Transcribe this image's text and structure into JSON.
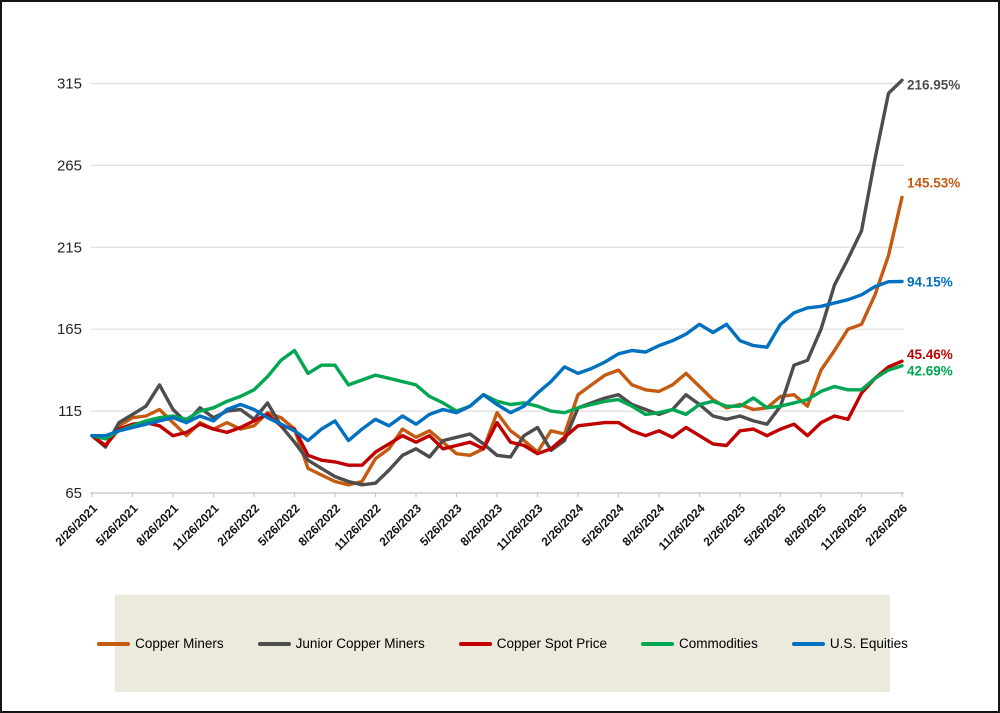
{
  "chart_data": {
    "type": "line",
    "title": "",
    "grid": "horizontal",
    "legend_position": "bottom",
    "months_total": 60,
    "y_axis": {
      "ticks": [
        65,
        115,
        165,
        215,
        265,
        315
      ],
      "min": 65,
      "max": 320
    },
    "x_tick_labels": [
      "2/26/2021",
      "5/26/2021",
      "8/26/2021",
      "11/26/2021",
      "2/26/2022",
      "5/26/2022",
      "8/26/2022",
      "11/26/2022",
      "2/26/2023",
      "5/26/2023",
      "8/26/2023",
      "11/26/2023",
      "2/26/2024",
      "5/26/2024",
      "8/26/2024",
      "11/26/2024",
      "2/26/2025",
      "5/26/2025",
      "8/26/2025",
      "11/26/2025",
      "2/26/2026"
    ],
    "series": [
      {
        "name": "Copper Miners",
        "color": "#C55A11",
        "end_label": "145.53%",
        "values": [
          100,
          94,
          106,
          111,
          112,
          116,
          108,
          100,
          108,
          104,
          108,
          104,
          106,
          114,
          111,
          104,
          80,
          76,
          72,
          70,
          72,
          86,
          92,
          104,
          99,
          103,
          96,
          89,
          88,
          92,
          114,
          103,
          97,
          90,
          103,
          101,
          125,
          131,
          137,
          140,
          131,
          128,
          127,
          131,
          138,
          130,
          122,
          117,
          119,
          116,
          117,
          124,
          125,
          118,
          140,
          152,
          165,
          168,
          186,
          210,
          245.53
        ]
      },
      {
        "name": "Junior Copper Miners",
        "color": "#4D4D4D",
        "end_label": "216.95%",
        "values": [
          100,
          93,
          108,
          113,
          118,
          131,
          116,
          108,
          117,
          111,
          115,
          116,
          110,
          120,
          106,
          96,
          85,
          80,
          75,
          72,
          70,
          71,
          79,
          88,
          92,
          87,
          97,
          99,
          101,
          95,
          88,
          87,
          100,
          105,
          91,
          97,
          117,
          120,
          123,
          125,
          119,
          116,
          113,
          116,
          125,
          119,
          112,
          110,
          112,
          109,
          107,
          118,
          143,
          146,
          165,
          192,
          208,
          225,
          269,
          309,
          316.95
        ]
      },
      {
        "name": "Copper Spot Price",
        "color": "#C00000",
        "end_label": "45.46%",
        "values": [
          100,
          94,
          104,
          107,
          108,
          106,
          100,
          102,
          107,
          104,
          102,
          105,
          109,
          113,
          106,
          104,
          88,
          85,
          84,
          82,
          82,
          90,
          95,
          100,
          96,
          100,
          92,
          94,
          96,
          92,
          108,
          96,
          94,
          89,
          92,
          99,
          106,
          107,
          108,
          108,
          103,
          100,
          103,
          99,
          105,
          100,
          95,
          94,
          103,
          104,
          100,
          104,
          107,
          100,
          108,
          112,
          110,
          126,
          135,
          142,
          145.46
        ]
      },
      {
        "name": "Commodities",
        "color": "#00A651",
        "end_label": "42.69%",
        "values": [
          100,
          98,
          103,
          106,
          109,
          111,
          112,
          110,
          115,
          117,
          121,
          124,
          128,
          136,
          146,
          152,
          138,
          143,
          143,
          131,
          134,
          137,
          135,
          133,
          131,
          124,
          120,
          115,
          118,
          125,
          121,
          119,
          120,
          118,
          115,
          114,
          117,
          119,
          121,
          122,
          118,
          113,
          114,
          116,
          113,
          119,
          121,
          118,
          118,
          123,
          117,
          118,
          120,
          122,
          127,
          130,
          128,
          128,
          135,
          140,
          142.69
        ]
      },
      {
        "name": "U.S. Equities",
        "color": "#0070C0",
        "end_label": "94.15%",
        "values": [
          100,
          100,
          103,
          105,
          107,
          109,
          111,
          108,
          112,
          109,
          116,
          119,
          116,
          111,
          107,
          103,
          97,
          104,
          109,
          97,
          104,
          110,
          106,
          112,
          107,
          113,
          116,
          114,
          118,
          125,
          119,
          114,
          118,
          126,
          133,
          142,
          138,
          141,
          145,
          150,
          152,
          151,
          155,
          158,
          162,
          168,
          163,
          168,
          158,
          155,
          154,
          168,
          175,
          178,
          179,
          181,
          183,
          186,
          191,
          194,
          194.15
        ]
      }
    ]
  }
}
